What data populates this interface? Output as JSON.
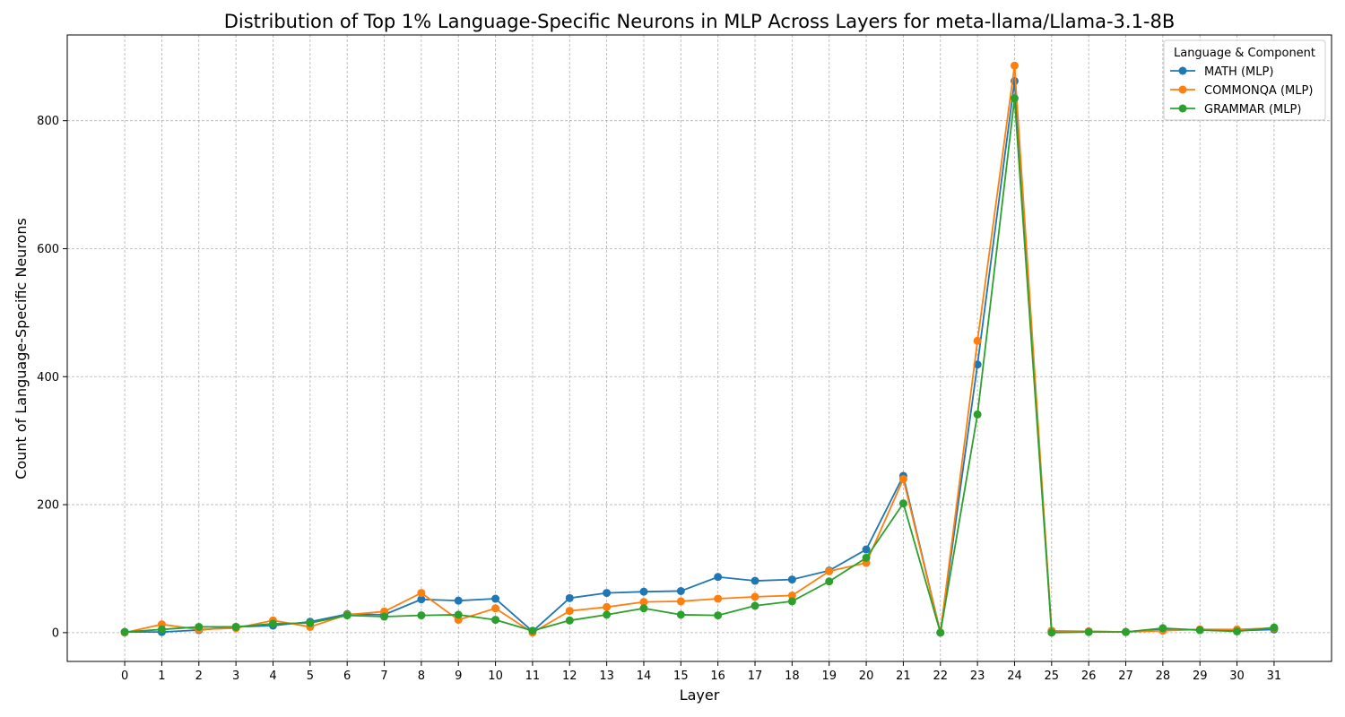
{
  "chart_data": {
    "type": "line",
    "title": "Distribution of Top 1% Language-Specific Neurons in MLP Across Layers for meta-llama/Llama-3.1-8B",
    "xlabel": "Layer",
    "ylabel": "Count of Language-Specific Neurons",
    "x": [
      0,
      1,
      2,
      3,
      4,
      5,
      6,
      7,
      8,
      9,
      10,
      11,
      12,
      13,
      14,
      15,
      16,
      17,
      18,
      19,
      20,
      21,
      22,
      23,
      24,
      25,
      26,
      27,
      28,
      29,
      30,
      31
    ],
    "xlim": [
      -1.55,
      32.55
    ],
    "ylim": [
      -45,
      934
    ],
    "yticks": [
      0,
      200,
      400,
      600,
      800
    ],
    "grid": true,
    "legend": {
      "title": "Language & Component",
      "placement": "top-right"
    },
    "series": [
      {
        "name": "MATH (MLP)",
        "color": "#1f77b4",
        "values": [
          1,
          1,
          4,
          9,
          11,
          17,
          29,
          28,
          52,
          50,
          53,
          2,
          54,
          62,
          64,
          65,
          87,
          81,
          83,
          97,
          130,
          245,
          0,
          419,
          862,
          2,
          2,
          1,
          6,
          4,
          3,
          5
        ]
      },
      {
        "name": "COMMONQA (MLP)",
        "color": "#ff7f0e",
        "values": [
          0,
          13,
          5,
          7,
          19,
          9,
          28,
          33,
          62,
          20,
          38,
          0,
          34,
          40,
          48,
          49,
          53,
          56,
          58,
          96,
          109,
          240,
          0,
          456,
          886,
          3,
          2,
          1,
          3,
          5,
          5,
          7
        ]
      },
      {
        "name": "GRAMMAR (MLP)",
        "color": "#2ca02c",
        "values": [
          1,
          5,
          9,
          9,
          14,
          15,
          27,
          25,
          27,
          28,
          20,
          3,
          19,
          28,
          38,
          28,
          27,
          42,
          49,
          80,
          117,
          202,
          0,
          341,
          835,
          0,
          1,
          1,
          7,
          4,
          2,
          8
        ]
      }
    ]
  }
}
